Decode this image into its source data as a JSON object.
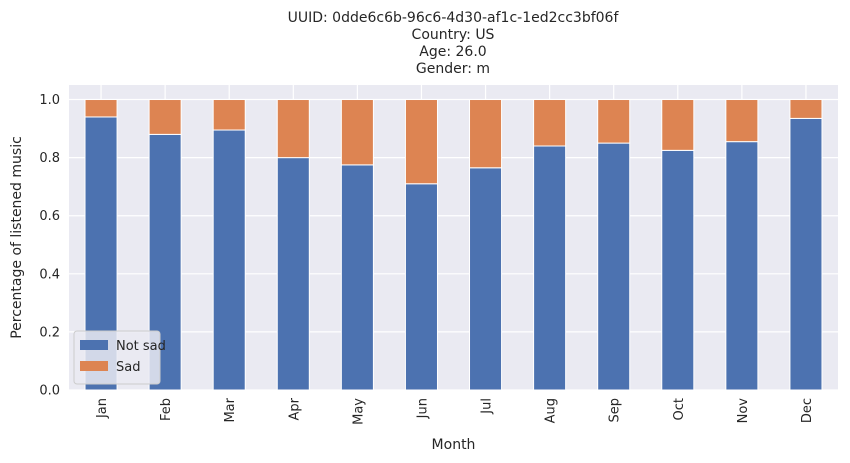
{
  "chart_data": {
    "type": "bar",
    "stacked": true,
    "title_lines": [
      "UUID: 0dde6c6b-96c6-4d30-af1c-1ed2cc3bf06f",
      "Country: US",
      "Age: 26.0",
      "Gender: m"
    ],
    "xlabel": "Month",
    "ylabel": "Percentage of listened music",
    "categories": [
      "Jan",
      "Feb",
      "Mar",
      "Apr",
      "May",
      "Jun",
      "Jul",
      "Aug",
      "Sep",
      "Oct",
      "Nov",
      "Dec"
    ],
    "series": [
      {
        "name": "Not sad",
        "color": "#4c72b0",
        "values": [
          0.94,
          0.88,
          0.895,
          0.8,
          0.775,
          0.71,
          0.765,
          0.84,
          0.85,
          0.825,
          0.855,
          0.935
        ]
      },
      {
        "name": "Sad",
        "color": "#dd8452",
        "values": [
          0.06,
          0.12,
          0.105,
          0.2,
          0.225,
          0.29,
          0.235,
          0.16,
          0.15,
          0.175,
          0.145,
          0.065
        ]
      }
    ],
    "ylim": [
      0,
      1.05
    ],
    "yticks": [
      "0.0",
      "0.2",
      "0.4",
      "0.6",
      "0.8",
      "1.0"
    ],
    "grid": true,
    "legend_position": "lower-left",
    "background": "#eaeaf2"
  }
}
